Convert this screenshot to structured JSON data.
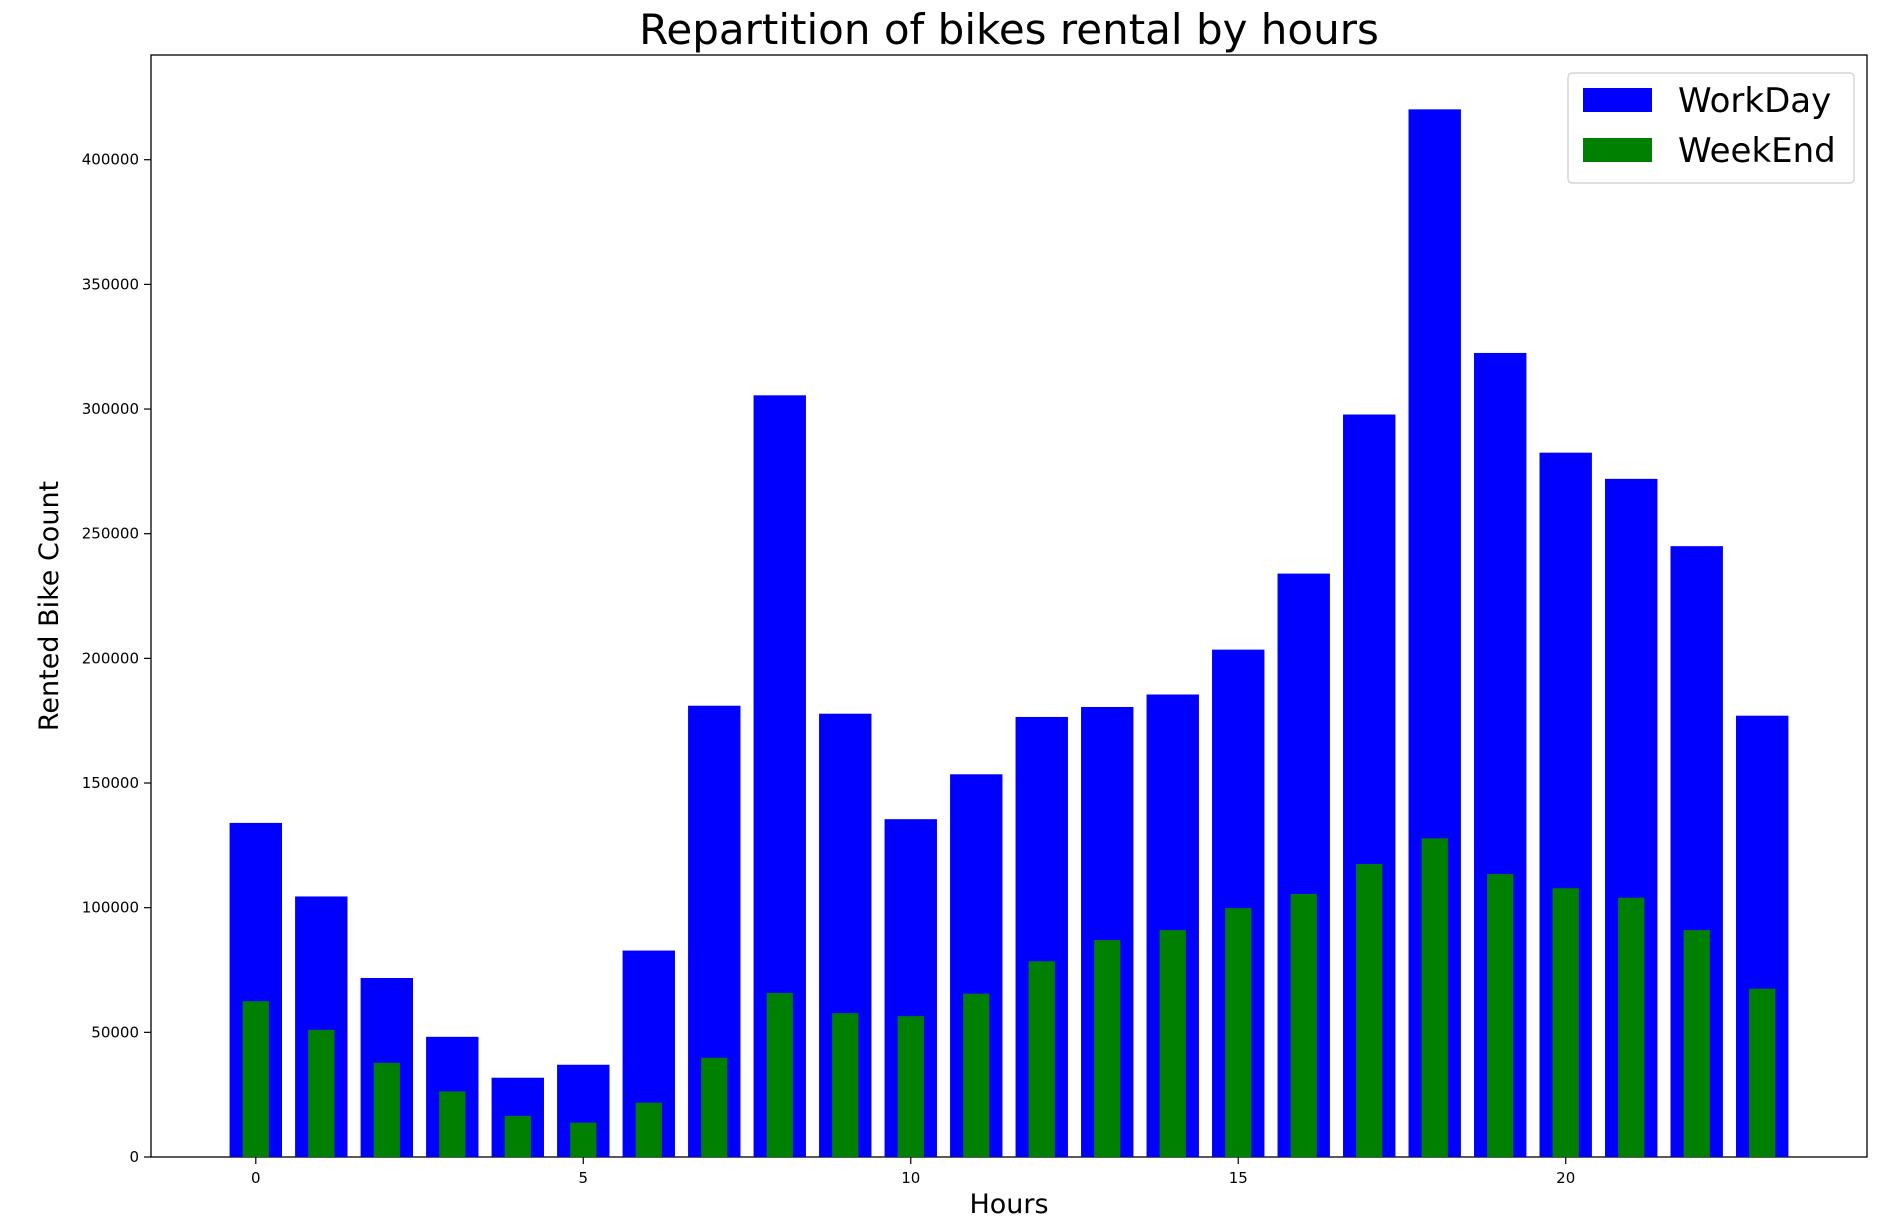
{
  "chart_data": {
    "type": "bar",
    "title": "Repartition of bikes rental by hours",
    "xlabel": "Hours",
    "ylabel": "Rented Bike Count",
    "x": [
      0,
      1,
      2,
      3,
      4,
      5,
      6,
      7,
      8,
      9,
      10,
      11,
      12,
      13,
      14,
      15,
      16,
      17,
      18,
      19,
      20,
      21,
      22,
      23
    ],
    "xticks": [
      0,
      5,
      10,
      15,
      20
    ],
    "xlim": [
      -1.6,
      24.6
    ],
    "yticks": [
      0,
      50000,
      100000,
      150000,
      200000,
      250000,
      300000,
      350000,
      400000
    ],
    "ylim": [
      0,
      442000
    ],
    "grid": false,
    "legend_position": "top-right",
    "series": [
      {
        "name": "WorkDay",
        "color": "#0000ff",
        "values": [
          134000,
          104500,
          71800,
          48200,
          31800,
          37000,
          82800,
          181000,
          305500,
          177800,
          135500,
          153500,
          176500,
          180500,
          185500,
          203500,
          234000,
          297800,
          420200,
          322500,
          282500,
          272000,
          245000,
          177000
        ]
      },
      {
        "name": "WeekEnd",
        "color": "#008000",
        "values": [
          62500,
          51000,
          37800,
          26300,
          16500,
          13800,
          21800,
          39800,
          65800,
          57700,
          56500,
          65500,
          78500,
          87000,
          91000,
          99800,
          105500,
          117500,
          127800,
          113500,
          107800,
          104000,
          91000,
          67500
        ]
      }
    ]
  }
}
